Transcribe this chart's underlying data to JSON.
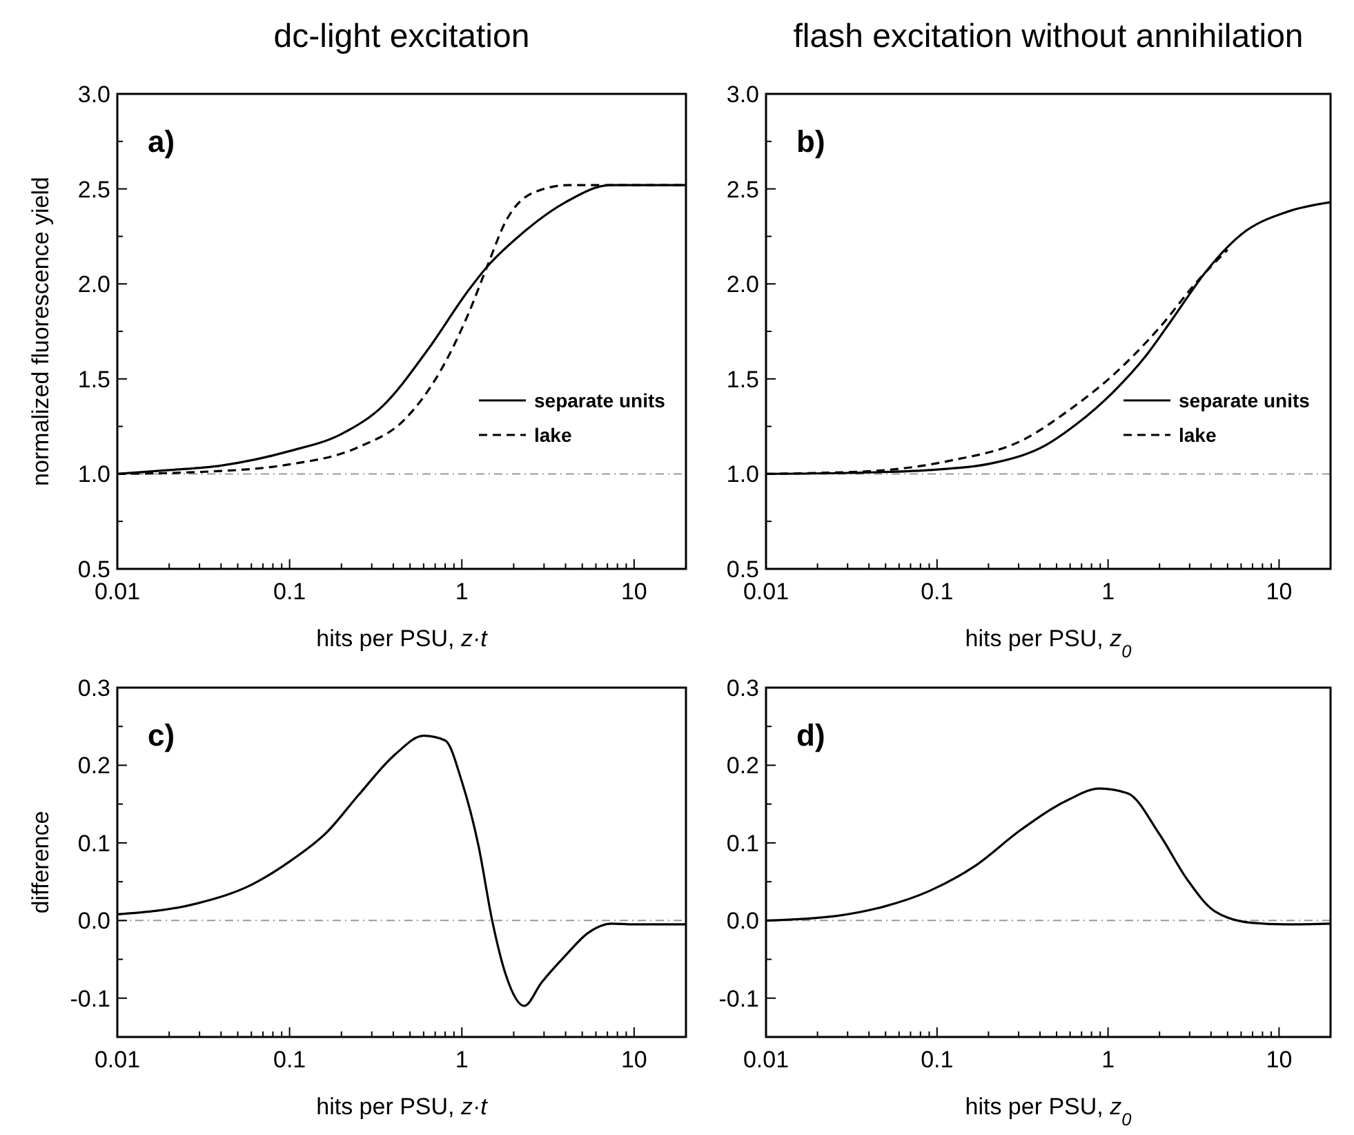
{
  "chart_data": [
    {
      "type": "line",
      "title": "dc-light excitation",
      "ylabel": "normalized fluorescence yield",
      "xlabel": "hits per PSU, z·t",
      "log": "x",
      "legend": "right",
      "annotations": [
        "a)"
      ],
      "xlim": [
        0.01,
        20
      ],
      "ylim": [
        0.5,
        3.0
      ],
      "xticks": [
        {
          "value": 0.01,
          "label": "0.01"
        },
        {
          "value": 0.02,
          "label": null
        },
        {
          "value": 0.03,
          "label": null
        },
        {
          "value": 0.04,
          "label": null
        },
        {
          "value": 0.05,
          "label": null
        },
        {
          "value": 0.06,
          "label": null
        },
        {
          "value": 0.07,
          "label": null
        },
        {
          "value": 0.08,
          "label": null
        },
        {
          "value": 0.09,
          "label": null
        },
        {
          "value": 0.1,
          "label": "0.1"
        },
        {
          "value": 0.2,
          "label": null
        },
        {
          "value": 0.3,
          "label": null
        },
        {
          "value": 0.4,
          "label": null
        },
        {
          "value": 0.5,
          "label": null
        },
        {
          "value": 0.6,
          "label": null
        },
        {
          "value": 0.7,
          "label": null
        },
        {
          "value": 0.8,
          "label": null
        },
        {
          "value": 0.9,
          "label": null
        },
        {
          "value": 1,
          "label": "1"
        },
        {
          "value": 2,
          "label": null
        },
        {
          "value": 3,
          "label": null
        },
        {
          "value": 4,
          "label": null
        },
        {
          "value": 5,
          "label": null
        },
        {
          "value": 6,
          "label": null
        },
        {
          "value": 7,
          "label": null
        },
        {
          "value": 8,
          "label": null
        },
        {
          "value": 9,
          "label": null
        },
        {
          "value": 10,
          "label": "10"
        }
      ],
      "yticks": [
        {
          "value": 0.5,
          "label": "0.5"
        },
        {
          "value": 0.75,
          "label": null
        },
        {
          "value": 1,
          "label": "1.0"
        },
        {
          "value": 1.25,
          "label": null
        },
        {
          "value": 1.5,
          "label": "1.5"
        },
        {
          "value": 1.75,
          "label": null
        },
        {
          "value": 2,
          "label": "2.0"
        },
        {
          "value": 2.25,
          "label": null
        },
        {
          "value": 2.5,
          "label": "2.5"
        },
        {
          "value": 2.75,
          "label": null
        },
        {
          "value": 3,
          "label": "3.0"
        }
      ],
      "ref_lines": [
        {
          "axis": "y",
          "value": 1,
          "color": "#999999",
          "line_style": "dashdot"
        }
      ],
      "series": [
        {
          "name": "separate units",
          "color": "#000000",
          "line_style": "solid",
          "x": [
            0.01,
            0.02,
            0.04,
            0.1,
            0.2,
            0.35,
            0.63,
            1.1,
            1.4,
            2.2,
            4,
            7.3,
            12,
            20
          ],
          "values": [
            1.0,
            1.02,
            1.044,
            1.12,
            1.21,
            1.36,
            1.65,
            1.97,
            2.09,
            2.26,
            2.43,
            2.52,
            2.52,
            2.52
          ]
        },
        {
          "name": "lake",
          "color": "#000000",
          "line_style": "dashed",
          "x": [
            0.01,
            0.03,
            0.1,
            0.25,
            0.47,
            0.76,
            1.1,
            1.4,
            1.8,
            2.6,
            4.2,
            8,
            20
          ],
          "values": [
            1.0,
            1.01,
            1.05,
            1.14,
            1.29,
            1.55,
            1.85,
            2.09,
            2.33,
            2.48,
            2.52,
            2.52,
            2.52
          ]
        }
      ]
    },
    {
      "type": "line",
      "title": "flash excitation without annihilation",
      "xlabel": "hits per PSU,  z$_{0}$",
      "log": "x",
      "legend": "right",
      "annotations": [
        "b)"
      ],
      "xlim": [
        0.01,
        20
      ],
      "ylim": [
        0.5,
        3.0
      ],
      "xticks": [
        {
          "value": 0.01,
          "label": "0.01"
        },
        {
          "value": 0.02,
          "label": null
        },
        {
          "value": 0.03,
          "label": null
        },
        {
          "value": 0.04,
          "label": null
        },
        {
          "value": 0.05,
          "label": null
        },
        {
          "value": 0.06,
          "label": null
        },
        {
          "value": 0.07,
          "label": null
        },
        {
          "value": 0.08,
          "label": null
        },
        {
          "value": 0.09,
          "label": null
        },
        {
          "value": 0.1,
          "label": "0.1"
        },
        {
          "value": 0.2,
          "label": null
        },
        {
          "value": 0.3,
          "label": null
        },
        {
          "value": 0.4,
          "label": null
        },
        {
          "value": 0.5,
          "label": null
        },
        {
          "value": 0.6,
          "label": null
        },
        {
          "value": 0.7,
          "label": null
        },
        {
          "value": 0.8,
          "label": null
        },
        {
          "value": 0.9,
          "label": null
        },
        {
          "value": 1,
          "label": "1"
        },
        {
          "value": 2,
          "label": null
        },
        {
          "value": 3,
          "label": null
        },
        {
          "value": 4,
          "label": null
        },
        {
          "value": 5,
          "label": null
        },
        {
          "value": 6,
          "label": null
        },
        {
          "value": 7,
          "label": null
        },
        {
          "value": 8,
          "label": null
        },
        {
          "value": 9,
          "label": null
        },
        {
          "value": 10,
          "label": "10"
        }
      ],
      "yticks": [
        {
          "value": 0.5,
          "label": "0.5"
        },
        {
          "value": 0.75,
          "label": null
        },
        {
          "value": 1,
          "label": "1.0"
        },
        {
          "value": 1.25,
          "label": null
        },
        {
          "value": 1.5,
          "label": "1.5"
        },
        {
          "value": 1.75,
          "label": null
        },
        {
          "value": 2,
          "label": "2.0"
        },
        {
          "value": 2.25,
          "label": null
        },
        {
          "value": 2.5,
          "label": "2.5"
        },
        {
          "value": 2.75,
          "label": null
        },
        {
          "value": 3,
          "label": "3.0"
        }
      ],
      "ref_lines": [
        {
          "axis": "y",
          "value": 1,
          "color": "#999999",
          "line_style": "dashdot"
        }
      ],
      "series": [
        {
          "name": "separate units",
          "color": "#000000",
          "line_style": "solid",
          "x": [
            0.01,
            0.03,
            0.09,
            0.22,
            0.43,
            0.65,
            1.07,
            1.66,
            2.4,
            3.7,
            6,
            11.2,
            20
          ],
          "values": [
            1.0,
            1.005,
            1.02,
            1.06,
            1.15,
            1.26,
            1.43,
            1.62,
            1.82,
            2.06,
            2.26,
            2.38,
            2.43
          ]
        },
        {
          "name": "lake",
          "color": "#000000",
          "line_style": "dashed",
          "x": [
            0.01,
            0.02,
            0.05,
            0.12,
            0.32,
            0.58,
            1.07,
            2.0,
            3.3,
            5
          ],
          "values": [
            1.0,
            1.005,
            1.02,
            1.07,
            1.18,
            1.33,
            1.52,
            1.77,
            2.01,
            2.18
          ]
        }
      ]
    },
    {
      "type": "line",
      "ylabel": "difference",
      "xlabel": "hits per PSU, z·t",
      "log": "x",
      "annotations": [
        "c)"
      ],
      "xlim": [
        0.01,
        20
      ],
      "ylim": [
        -0.15,
        0.3
      ],
      "xticks": [
        {
          "value": 0.01,
          "label": "0.01"
        },
        {
          "value": 0.02,
          "label": null
        },
        {
          "value": 0.03,
          "label": null
        },
        {
          "value": 0.04,
          "label": null
        },
        {
          "value": 0.05,
          "label": null
        },
        {
          "value": 0.06,
          "label": null
        },
        {
          "value": 0.07,
          "label": null
        },
        {
          "value": 0.08,
          "label": null
        },
        {
          "value": 0.09,
          "label": null
        },
        {
          "value": 0.1,
          "label": "0.1"
        },
        {
          "value": 0.2,
          "label": null
        },
        {
          "value": 0.3,
          "label": null
        },
        {
          "value": 0.4,
          "label": null
        },
        {
          "value": 0.5,
          "label": null
        },
        {
          "value": 0.6,
          "label": null
        },
        {
          "value": 0.7,
          "label": null
        },
        {
          "value": 0.8,
          "label": null
        },
        {
          "value": 0.9,
          "label": null
        },
        {
          "value": 1,
          "label": "1"
        },
        {
          "value": 2,
          "label": null
        },
        {
          "value": 3,
          "label": null
        },
        {
          "value": 4,
          "label": null
        },
        {
          "value": 5,
          "label": null
        },
        {
          "value": 6,
          "label": null
        },
        {
          "value": 7,
          "label": null
        },
        {
          "value": 8,
          "label": null
        },
        {
          "value": 9,
          "label": null
        },
        {
          "value": 10,
          "label": "10"
        }
      ],
      "yticks": [
        {
          "value": -0.1,
          "label": "-0.1"
        },
        {
          "value": -0.05,
          "label": null
        },
        {
          "value": 0,
          "label": "0.0"
        },
        {
          "value": 0.05,
          "label": null
        },
        0.1,
        {
          "value": 0.15,
          "label": null
        },
        0.2,
        {
          "value": 0.25,
          "label": null
        },
        0.3
      ],
      "ref_lines": [
        {
          "axis": "y",
          "value": 0,
          "color": "#999999",
          "line_style": "dashdot"
        }
      ],
      "series": [
        {
          "color": "#000000",
          "line_style": "solid",
          "x": [
            0.01,
            0.029,
            0.06,
            0.1,
            0.165,
            0.25,
            0.41,
            0.6,
            0.8,
            1.0,
            1.25,
            1.5,
            1.8,
            2.3,
            2.9,
            4,
            5.4,
            7.4,
            10,
            20
          ],
          "values": [
            0.008,
            0.022,
            0.046,
            0.076,
            0.114,
            0.161,
            0.214,
            0.238,
            0.232,
            0.179,
            0.096,
            0.0,
            -0.07,
            -0.11,
            -0.08,
            -0.045,
            -0.016,
            -0.004,
            -0.005,
            -0.005
          ]
        }
      ]
    },
    {
      "type": "line",
      "xlabel": "hits per PSU,  z$_{0}$",
      "log": "x",
      "annotations": [
        "d)"
      ],
      "xlim": [
        0.01,
        20
      ],
      "ylim": [
        -0.15,
        0.3
      ],
      "xticks": [
        {
          "value": 0.01,
          "label": "0.01"
        },
        {
          "value": 0.02,
          "label": null
        },
        {
          "value": 0.03,
          "label": null
        },
        {
          "value": 0.04,
          "label": null
        },
        {
          "value": 0.05,
          "label": null
        },
        {
          "value": 0.06,
          "label": null
        },
        {
          "value": 0.07,
          "label": null
        },
        {
          "value": 0.08,
          "label": null
        },
        {
          "value": 0.09,
          "label": null
        },
        {
          "value": 0.1,
          "label": "0.1"
        },
        {
          "value": 0.2,
          "label": null
        },
        {
          "value": 0.3,
          "label": null
        },
        {
          "value": 0.4,
          "label": null
        },
        {
          "value": 0.5,
          "label": null
        },
        {
          "value": 0.6,
          "label": null
        },
        {
          "value": 0.7,
          "label": null
        },
        {
          "value": 0.8,
          "label": null
        },
        {
          "value": 0.9,
          "label": null
        },
        {
          "value": 1,
          "label": "1"
        },
        {
          "value": 2,
          "label": null
        },
        {
          "value": 3,
          "label": null
        },
        {
          "value": 4,
          "label": null
        },
        {
          "value": 5,
          "label": null
        },
        {
          "value": 6,
          "label": null
        },
        {
          "value": 7,
          "label": null
        },
        {
          "value": 8,
          "label": null
        },
        {
          "value": 9,
          "label": null
        },
        {
          "value": 10,
          "label": "10"
        }
      ],
      "yticks": [
        {
          "value": -0.1,
          "label": "-0.1"
        },
        {
          "value": -0.05,
          "label": null
        },
        {
          "value": 0,
          "label": "0.0"
        },
        {
          "value": 0.05,
          "label": null
        },
        0.1,
        {
          "value": 0.15,
          "label": null
        },
        0.2,
        {
          "value": 0.25,
          "label": null
        },
        0.3
      ],
      "ref_lines": [
        {
          "axis": "y",
          "value": 0,
          "color": "#999999",
          "line_style": "dashdot"
        }
      ],
      "series": [
        {
          "color": "#000000",
          "line_style": "solid",
          "x": [
            0.01,
            0.026,
            0.049,
            0.09,
            0.166,
            0.31,
            0.58,
            0.89,
            1.3,
            2.0,
            2.9,
            4.2,
            6.9,
            11,
            20
          ],
          "values": [
            0.0,
            0.006,
            0.018,
            0.038,
            0.07,
            0.117,
            0.155,
            0.17,
            0.164,
            0.111,
            0.053,
            0.012,
            -0.003,
            -0.005,
            -0.004
          ]
        }
      ]
    }
  ]
}
